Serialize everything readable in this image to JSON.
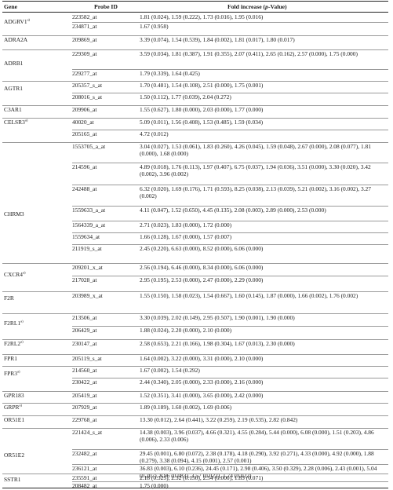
{
  "header": {
    "gene": "Gene",
    "probe": "Probe ID",
    "fold": "Fold increase (",
    "fold_italic": "p",
    "fold_end": "-Value)"
  },
  "genes": [
    {
      "name": "ADGRV1",
      "sup": "a)"
    },
    {
      "name": "ADRA2A",
      "sup": ""
    },
    {
      "name": "ADRB1",
      "sup": ""
    },
    {
      "name": "AGTR1",
      "sup": ""
    },
    {
      "name": "C3AR1",
      "sup": ""
    },
    {
      "name": "CELSR3",
      "sup": "a)"
    },
    {
      "name": "CHRM3",
      "sup": ""
    },
    {
      "name": "CXCR4",
      "sup": "a)"
    },
    {
      "name": "F2R",
      "sup": ""
    },
    {
      "name": "F2RL1",
      "sup": "a)"
    },
    {
      "name": "F2RL2",
      "sup": "a)"
    },
    {
      "name": "FPR1",
      "sup": ""
    },
    {
      "name": "FPR3",
      "sup": "a)"
    },
    {
      "name": "GPR183",
      "sup": ""
    },
    {
      "name": "GRPR",
      "sup": "a)"
    },
    {
      "name": "OR51E1",
      "sup": ""
    },
    {
      "name": "OR51E2",
      "sup": ""
    },
    {
      "name": "SSTR1",
      "sup": ""
    }
  ],
  "rows": [
    {
      "probe": "223582_at",
      "value": "1.81 (0.024), 1.59 (0.222), 1.73 (0.016), 1.95 (0.016)"
    },
    {
      "probe": "234871_at",
      "value": "1.67 (0.958)"
    },
    {
      "probe": "209869_at",
      "value": "3.39 (0.074), 1.54 (0.539), 1.84 (0.002), 1.81 (0.017), 1.80 (0.017)"
    },
    {
      "probe": "229309_at",
      "value": "3.59 (0.034), 1.81 (0.387), 1.91 (0.355), 2.07 (0.411), 2.65 (0.162), 2.57 (0.000), 1.75 (0.000)"
    },
    {
      "probe": "229277_at",
      "value": "1.79 (0.339), 1.64 (0.425)"
    },
    {
      "probe": "205357_s_at",
      "value": "1.70 (0.481), 1.54 (0.108), 2.51 (0.000), 1.75 (0.001)"
    },
    {
      "probe": "208016_s_at",
      "value": "1.50 (0.112), 1.77 (0.039), 2.04 (0.272)"
    },
    {
      "probe": "209906_at",
      "value": "1.55 (0.627), 1.80 (0.000), 2.03 (0.000), 1.77 (0.000)"
    },
    {
      "probe": "40020_at",
      "value": "5.09 (0.011), 1.56 (0.408), 1.53 (0.485), 1.59 (0.034)"
    },
    {
      "probe": "205165_at",
      "value": "4.72 (0.012)"
    },
    {
      "probe": "1553705_a_at",
      "value": "3.04 (0.027), 1.53 (0.061), 1.83 (0.260), 4.26 (0.045), 1.59 (0.048), 2.67 (0.000), 2.08 (0.077), 1.81 (0.000), 1.68 (0.000)"
    },
    {
      "probe": "214596_at",
      "value": "4.89 (0.018), 1.76 (0.113), 1.97 (0.407), 6.75 (0.037), 1.94 (0.036), 3.51 (0.000), 3.30 (0.020), 3.42 (0.002), 3.96 (0.002)"
    },
    {
      "probe": "242488_at",
      "value": "6.32 (0.020), 1.69 (0.176), 1.71 (0.593), 8.25 (0.038), 2.13 (0.039), 5.21 (0.002), 3.16 (0.002), 3.27 (0.002)"
    },
    {
      "probe": "1559633_a_at",
      "value": "4.11 (0.047), 1.52 (0.650), 4.45 (0.135), 2.08 (0.003), 2.89 (0.000), 2.53 (0.000)"
    },
    {
      "probe": "1564339_a_at",
      "value": "2.71 (0.023), 1.83 (0.000), 1.72 (0.000)"
    },
    {
      "probe": "1559634_at",
      "value": "1.66 (0.128), 1.67 (0.000), 1.57 (0.007)"
    },
    {
      "probe": "211919_s_at",
      "value": "2.45 (0.220), 6.63 (0.000), 8.52 (0.000), 6.06 (0.000)"
    },
    {
      "probe": "209201_x_at",
      "value": "2.56 (0.194), 6.46 (0.000), 8.34 (0.000), 6.06 (0.000)"
    },
    {
      "probe": "217028_at",
      "value": "2.95 (0.195), 2.53 (0.000), 2.47 (0.000), 2.29 (0.000)"
    },
    {
      "probe": "203989_x_at",
      "value": "1.55 (0.150), 1.58 (0.023), 1.54 (0.667), 1.60 (0.145), 1.87 (0.000), 1.66 (0.002), 1.76 (0.002)"
    },
    {
      "probe": "213506_at",
      "value": "3.30 (0.039), 2.02 (0.149), 2.95 (0.507), 1.90 (0.001), 1.90 (0.000)"
    },
    {
      "probe": "206429_at",
      "value": "1.88 (0.024), 2.20 (0.000), 2.10 (0.000)"
    },
    {
      "probe": "230147_at",
      "value": "2.58 (0.653), 2.21 (0.166), 1.98 (0.304), 1.67 (0.013), 2.30 (0.000)"
    },
    {
      "probe": "205119_s_at",
      "value": "1.64 (0.002), 3.22 (0.000), 3.31 (0.000), 2.10 (0.000)"
    },
    {
      "probe": "214560_at",
      "value": "1.67 (0.002), 1.54 (0.292)"
    },
    {
      "probe": "230422_at",
      "value": "2.44 (0.340), 2.05 (0.000), 2.33 (0.000), 2.16 (0.000)"
    },
    {
      "probe": "205419_at",
      "value": "1.52 (0.351), 3.41 (0.000), 3.65 (0.000), 2.42 (0.000)"
    },
    {
      "probe": "207929_at",
      "value": "1.89 (0.189), 1.60 (0.002), 1.69 (0.006)"
    },
    {
      "probe": "229768_at",
      "value": "13.30 (0.012), 2.64 (0.441), 3.22 (0.259), 2.19 (0.535), 2.82 (0.842)"
    },
    {
      "probe": "221424_s_at",
      "value": "14.38 (0.003), 3.96 (0.037), 4.66 (0.321), 4.55 (0.284), 5.44 (0.000), 6.08 (0.000), 1.51 (0.203), 4.86 (0.006), 2.33 (0.006)"
    },
    {
      "probe": "232482_at",
      "value": "29.45 (0.001), 6.80 (0.072), 2.38 (0.178), 4.18 (0.290), 3.92 (0.271), 4.33 (0.000), 4.92 (0.000), 1.88 (0.279), 3.38 (0.094), 4.15 (0.001), 2.57 (0.001)"
    },
    {
      "probe": "236121_at",
      "value": "36.83 (0.003), 6.10 (0.236), 24.45 (0.171), 2.98 (0.406), 3.50 (0.329), 2.28 (0.006), 2.43 (0.001), 5.04 (0.207), 8.96 (0.083), 3.57 (0.022), 1.74 (0.022)"
    },
    {
      "probe": "235591_at",
      "value": "2.18 (0.325), 2.32 (0.150), 2.54 (0.000), 1.83 (0.071)"
    },
    {
      "probe": "208482_at",
      "value": "1.75 (0.000)"
    }
  ]
}
